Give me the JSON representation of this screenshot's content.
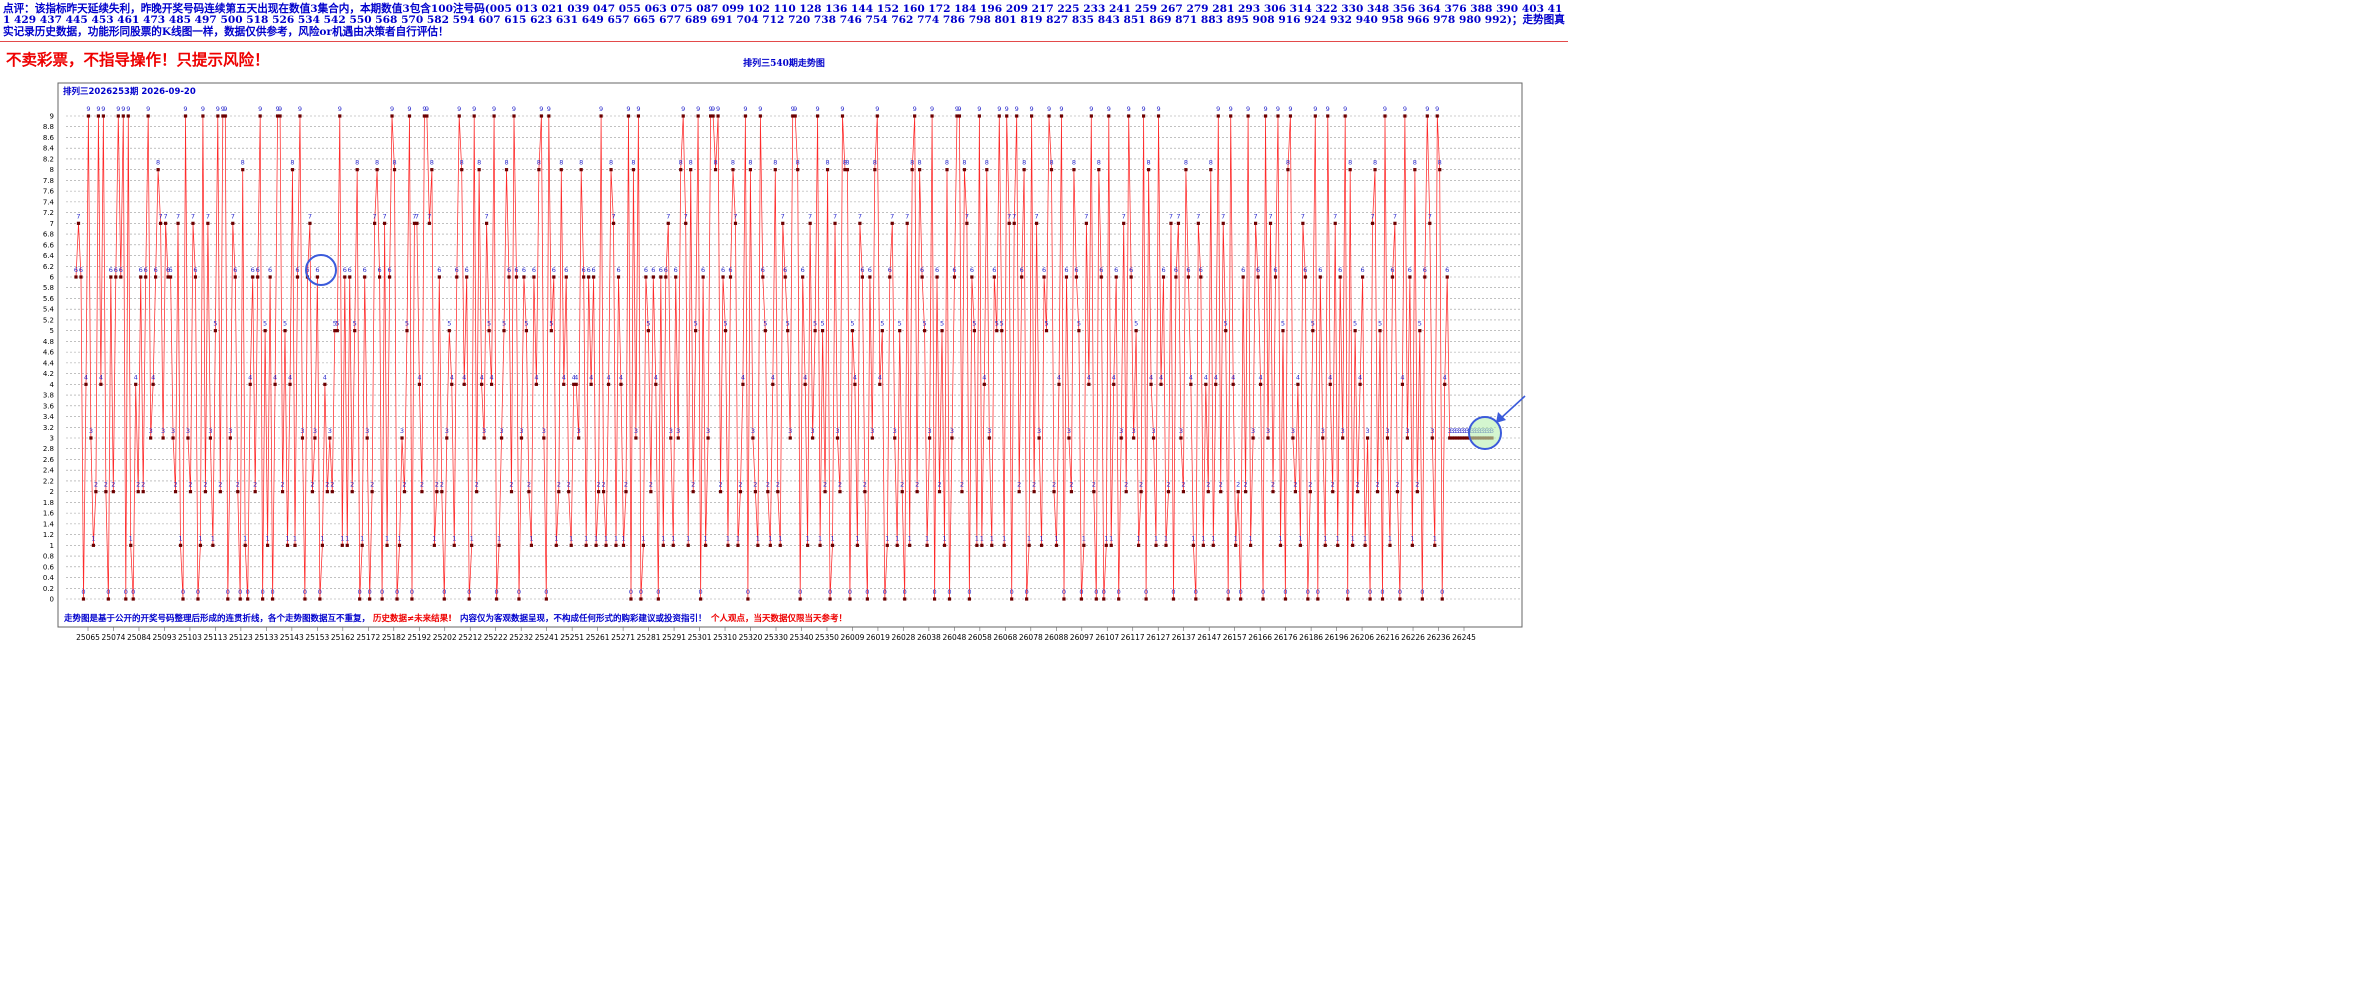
{
  "comment_text": "点评：该指标昨天延续失利，昨晚开奖号码连续第五天出现在数值3集合内，本期数值3包含100注号码(005 013 021 039 047 055 063 075 087 099 102 110 128 136 144 152 160 172 184 196 209 217 225 233 241 259 267 279 281 293 306 314 322 330 348 356 364 376 388 390 403 411 429 437 445 453 461 473 485 497 500 518 526 534 542 550 568 570 582 594 607 615 623 631 649 657 665 677 689 691 704 712 720 738 746 754 762 774 786 798 801 819 827 835 843 851 869 871 883 895 908 916 924 932 940 958 966 978 980 992)；走势图真实记录历史数据，功能形同股票的K线图一样，数据仅供参考，风险or机遇由决策者自行评估！",
  "warning_text": "不卖彩票，不指导操作！只提示风险！",
  "chart_title": "排列三540期走势图",
  "plot_header": "排列三2026253期 2026-09-20",
  "footer": {
    "part1": "走势图是基于公开的开奖号码整理后形成的连贯折线，各个走势图数据互不重复，",
    "part2": "历史数据≠未来结果!",
    "part3": "内容仅为客观数据呈现，不构成任何形式的购彩建议或投资指引！",
    "part4": "个人观点，当天数据仅限当天参考！"
  },
  "colors": {
    "text_blue": "#0000cc",
    "warning_red": "#ee0000",
    "line": "#ff2a2a",
    "marker": "#6b0000",
    "value_label": "#2a2acc",
    "grid": "#9a9a9a",
    "highlight_circle": "#3b5bdb",
    "highlight_fill": "#b8f0b0"
  },
  "chart_data": {
    "type": "line",
    "title": "排列三540期走势图",
    "subtitle": "排列三2026253期 2026-09-20",
    "ylim": [
      0,
      9
    ],
    "y_ticks": [
      "0",
      "0.2",
      "0.4",
      "0.6",
      "0.8",
      "1",
      "1.2",
      "1.4",
      "1.6",
      "1.8",
      "2",
      "2.2",
      "2.4",
      "2.6",
      "2.8",
      "3",
      "3.2",
      "3.4",
      "3.6",
      "3.8",
      "4",
      "4.2",
      "4.4",
      "4.6",
      "4.8",
      "5",
      "5.2",
      "5.4",
      "5.6",
      "5.8",
      "6",
      "6.2",
      "6.4",
      "6.6",
      "6.8",
      "7",
      "7.2",
      "7.4",
      "7.6",
      "7.8",
      "8",
      "8.2",
      "8.4",
      "8.6",
      "8.8",
      "9"
    ],
    "x_labels": [
      "25065",
      "25074",
      "25084",
      "25093",
      "25103",
      "25113",
      "25123",
      "25133",
      "25143",
      "25153",
      "25162",
      "25172",
      "25182",
      "25192",
      "25202",
      "25212",
      "25222",
      "25232",
      "25241",
      "25251",
      "25261",
      "25271",
      "25281",
      "25291",
      "25301",
      "25310",
      "25320",
      "25330",
      "25340",
      "25350",
      "26009",
      "26019",
      "26028",
      "26038",
      "26048",
      "26058",
      "26068",
      "26078",
      "26088",
      "26097",
      "26107",
      "26117",
      "26127",
      "26137",
      "26147",
      "26157",
      "26166",
      "26176",
      "26186",
      "26196",
      "26206",
      "26216",
      "26226",
      "26236",
      "26245"
    ],
    "grid": "horizontal dashed",
    "values": [
      6,
      7,
      6,
      0,
      4,
      9,
      3,
      1,
      2,
      9,
      4,
      9,
      2,
      0,
      6,
      2,
      6,
      9,
      6,
      9,
      0,
      9,
      1,
      0,
      4,
      2,
      6,
      2,
      6,
      9,
      3,
      4,
      6,
      8,
      7,
      3,
      7,
      6,
      6,
      3,
      2,
      7,
      1,
      0,
      9,
      3,
      2,
      7,
      6,
      0,
      1,
      9,
      2,
      7,
      3,
      1,
      5,
      9,
      2,
      9,
      9,
      0,
      3,
      7,
      6,
      2,
      0,
      8,
      1,
      0,
      4,
      6,
      2,
      6,
      9,
      0,
      5,
      1,
      6,
      0,
      4,
      9,
      9,
      2,
      5,
      1,
      4,
      8,
      1,
      6,
      9,
      3,
      0,
      6,
      7,
      2,
      3,
      6,
      0,
      1,
      4,
      2,
      3,
      2,
      5,
      5,
      9,
      1,
      6,
      1,
      6,
      2,
      5,
      8,
      0,
      1,
      6,
      3,
      0,
      2,
      7,
      8,
      6,
      0,
      7,
      1,
      6,
      9,
      8,
      0,
      1,
      3,
      2,
      5,
      9,
      0,
      7,
      7,
      4,
      2,
      9,
      9,
      7,
      8,
      1,
      2,
      6,
      2,
      0,
      3,
      5,
      4,
      1,
      6,
      9,
      8,
      4,
      6,
      0,
      1,
      9,
      2,
      8,
      4,
      3,
      7,
      5,
      4,
      9,
      0,
      1,
      3,
      5,
      8,
      6,
      2,
      9,
      6,
      0,
      3,
      6,
      5,
      2,
      1,
      6,
      4,
      8,
      9,
      3,
      0,
      9,
      5,
      6,
      1,
      2,
      8,
      4,
      6,
      2,
      1,
      4,
      4,
      3,
      8,
      6,
      1,
      6,
      4,
      6,
      1,
      2,
      9,
      2,
      1,
      4,
      8,
      7,
      1,
      6,
      4,
      1,
      2,
      9,
      0,
      8,
      3,
      9,
      0,
      1,
      6,
      5,
      2,
      6,
      4,
      0,
      6,
      1,
      6,
      7,
      3,
      1,
      6,
      3,
      8,
      9,
      7,
      1,
      8,
      2,
      5,
      9,
      0,
      6,
      1,
      3,
      9,
      9,
      8,
      9,
      2,
      6,
      5,
      1,
      6,
      8,
      7,
      1,
      2,
      4,
      9,
      0,
      8,
      3,
      2,
      1,
      9,
      6,
      5,
      2,
      1,
      4,
      8,
      2,
      1,
      7,
      6,
      5,
      3,
      9,
      9,
      8,
      0,
      6,
      4,
      1,
      7,
      3,
      5,
      9,
      1,
      5,
      2,
      8,
      0,
      1,
      7,
      3,
      2,
      9,
      8,
      8,
      0,
      5,
      4,
      1,
      7,
      6,
      2,
      0,
      6,
      3,
      8,
      9,
      4,
      5,
      0,
      1,
      6,
      7,
      3,
      1,
      5,
      2,
      0,
      7,
      1,
      8,
      9,
      2,
      8,
      6,
      5,
      1,
      3,
      9,
      0,
      6,
      2,
      5,
      1,
      8,
      0,
      3,
      6,
      9,
      9,
      2,
      8,
      7,
      0,
      6,
      5,
      1,
      9,
      1,
      4,
      8,
      3,
      1,
      6,
      5,
      9,
      5,
      1,
      9,
      7,
      0,
      7,
      9,
      2,
      6,
      8,
      0,
      1,
      9,
      2,
      7,
      3,
      1,
      6,
      5,
      9,
      8,
      2,
      1,
      4,
      9,
      0,
      6,
      3,
      2,
      8,
      6,
      5,
      0,
      1,
      7,
      4,
      9,
      2,
      0,
      8,
      6,
      0,
      1,
      9,
      1,
      4,
      6,
      0,
      3,
      7,
      2,
      9,
      6,
      3,
      5,
      1,
      2,
      9,
      0,
      8,
      4,
      3,
      1,
      9,
      4,
      6,
      1,
      2,
      7,
      0,
      6,
      7,
      3,
      2,
      8,
      6,
      4,
      1,
      0,
      7,
      6,
      1,
      4,
      2,
      8,
      1,
      4,
      9,
      2,
      7,
      5,
      0,
      9,
      4,
      1,
      2,
      0,
      6,
      2,
      9,
      1,
      3,
      7,
      6,
      4,
      0,
      9,
      3,
      7,
      2,
      6,
      9,
      1,
      5,
      0,
      8,
      9,
      3,
      2,
      4,
      1,
      7,
      6,
      0,
      2,
      5,
      9,
      0,
      6,
      3,
      1,
      9,
      4,
      2,
      7,
      1,
      6,
      3,
      9,
      0,
      8,
      1,
      5,
      2,
      4,
      6,
      1,
      3,
      0,
      7,
      8,
      2,
      5,
      0,
      9,
      3,
      1,
      6,
      7,
      2,
      0,
      4,
      9,
      3,
      6,
      1,
      8,
      2,
      5,
      0,
      6,
      9,
      7,
      3,
      1,
      9,
      8,
      0,
      4,
      6,
      3,
      3,
      3,
      3,
      3,
      3,
      3,
      3,
      3,
      3,
      3,
      3,
      3,
      3,
      3,
      3,
      3,
      3
    ],
    "annotations": [
      "circle at 6 near 25153",
      "circle at latest value 3",
      "arrow to latest value"
    ]
  }
}
